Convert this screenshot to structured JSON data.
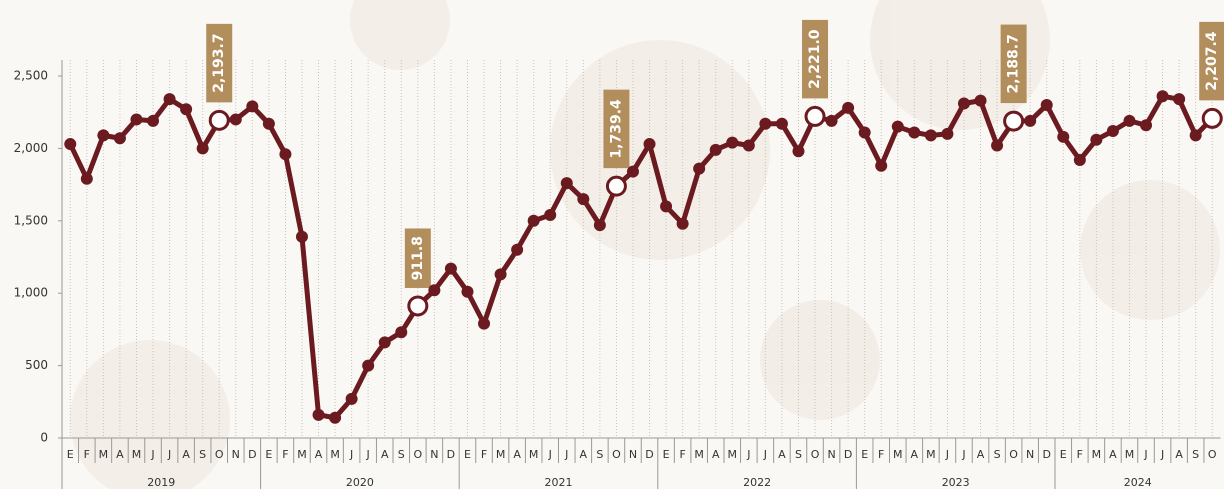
{
  "chart_data": {
    "type": "line",
    "categories": [
      "E",
      "F",
      "M",
      "A",
      "M",
      "J",
      "J",
      "A",
      "S",
      "O",
      "N",
      "D",
      "E",
      "F",
      "M",
      "A",
      "M",
      "J",
      "J",
      "A",
      "S",
      "O",
      "N",
      "D",
      "E",
      "F",
      "M",
      "A",
      "M",
      "J",
      "J",
      "A",
      "S",
      "O",
      "N",
      "D",
      "E",
      "F",
      "M",
      "A",
      "M",
      "J",
      "J",
      "A",
      "S",
      "O",
      "N",
      "D",
      "E",
      "F",
      "M",
      "A",
      "M",
      "J",
      "J",
      "A",
      "S",
      "O",
      "N",
      "D",
      "E",
      "F",
      "M",
      "A",
      "M",
      "J",
      "J",
      "A",
      "S",
      "O"
    ],
    "years": [
      "2019",
      "2020",
      "2021",
      "2022",
      "2023",
      "2024"
    ],
    "color": "#6b1a1f",
    "label_color": "#b38e5d",
    "values": [
      2030,
      1790,
      2090,
      2070,
      2200,
      2190,
      2340,
      2270,
      2000,
      2193.7,
      2200,
      2290,
      2170,
      1960,
      1390,
      160,
      140,
      270,
      500,
      660,
      730,
      911.8,
      1020,
      1170,
      1010,
      790,
      1130,
      1300,
      1500,
      1540,
      1760,
      1650,
      1470,
      1739.4,
      1840,
      2030,
      1600,
      1480,
      1860,
      1990,
      2040,
      2020,
      2170,
      2170,
      1980,
      2221.0,
      2190,
      2280,
      2110,
      1880,
      2150,
      2110,
      2090,
      2100,
      2310,
      2330,
      2020,
      2188.7,
      2190,
      2300,
      2080,
      1920,
      2060,
      2120,
      2190,
      2160,
      2360,
      2340,
      2090,
      2207.4
    ],
    "value_labels": [
      null,
      null,
      null,
      null,
      null,
      null,
      null,
      null,
      null,
      "2,193.7",
      null,
      null,
      null,
      null,
      null,
      null,
      null,
      null,
      null,
      null,
      null,
      "911.8",
      null,
      null,
      null,
      null,
      null,
      null,
      null,
      null,
      null,
      null,
      null,
      "1,739.4",
      null,
      null,
      null,
      null,
      null,
      null,
      null,
      null,
      null,
      null,
      null,
      "2,221.0",
      null,
      null,
      null,
      null,
      null,
      null,
      null,
      null,
      null,
      null,
      null,
      "2,188.7",
      null,
      null,
      null,
      null,
      null,
      null,
      null,
      null,
      null,
      null,
      null,
      "2,207.4"
    ],
    "ylim": [
      0,
      2500
    ],
    "yticks": [
      0,
      500,
      {
        "value": 1000,
        "label": "1,000"
      },
      {
        "value": 1500,
        "label": "1,500"
      },
      {
        "value": 2000,
        "label": "2,000"
      },
      {
        "value": 2500,
        "label": "2,500"
      }
    ],
    "grid": true
  }
}
